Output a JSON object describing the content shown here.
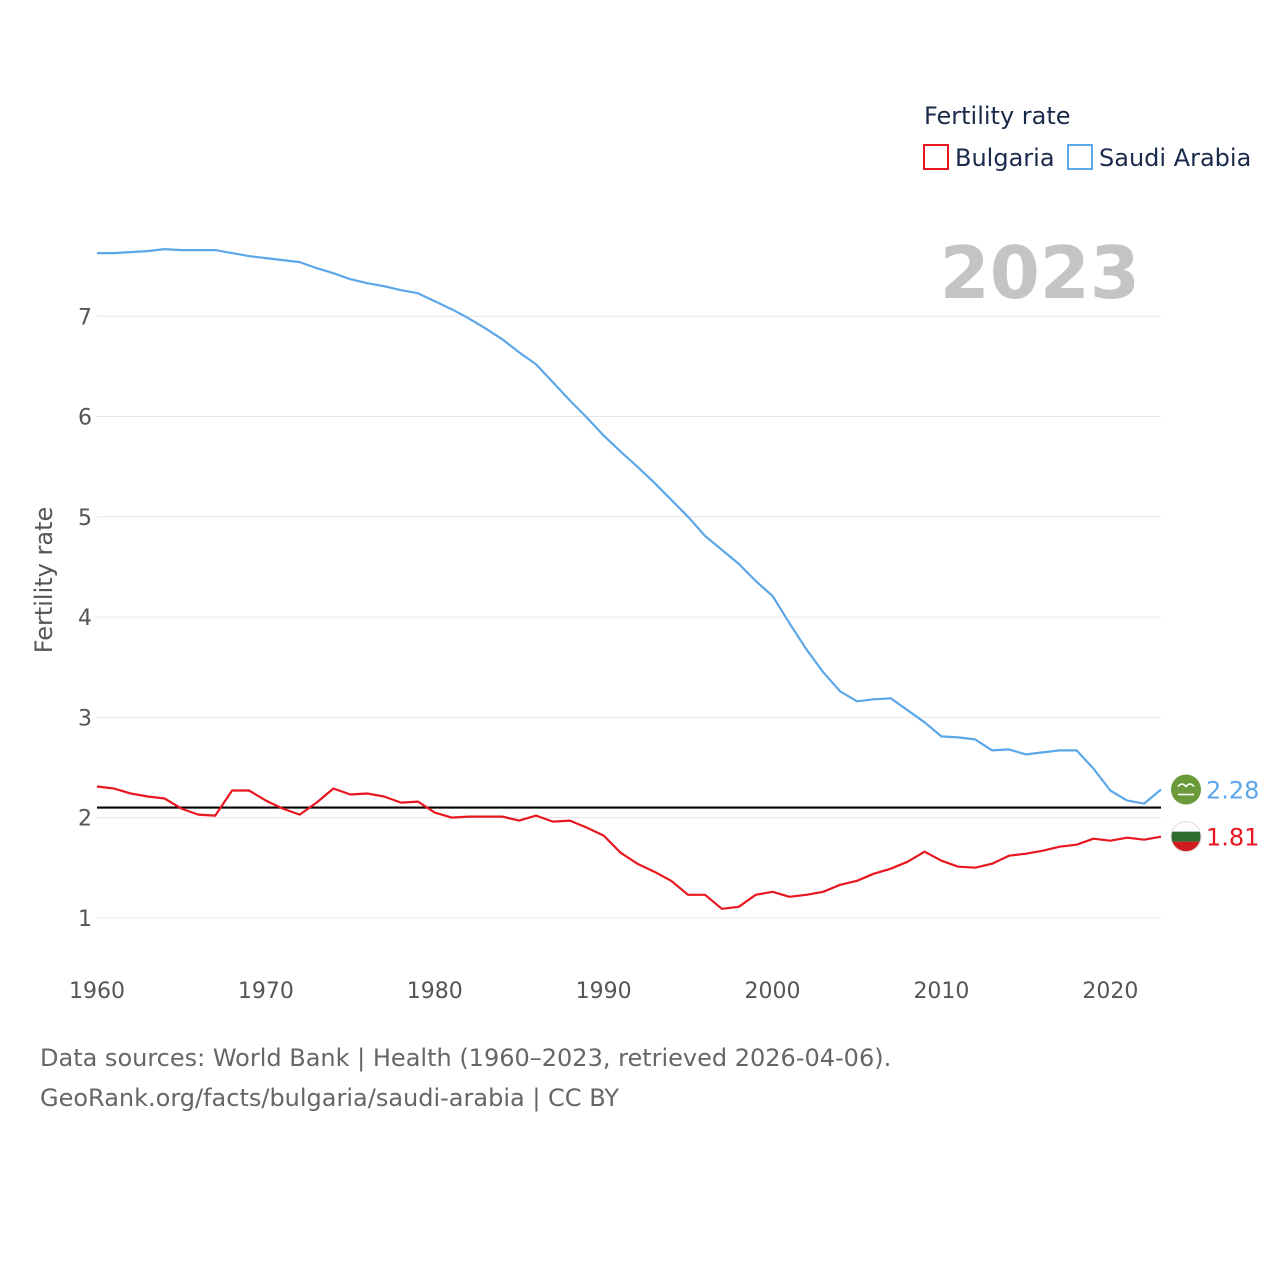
{
  "chart_data": {
    "type": "line",
    "title": "",
    "year_label": "2023",
    "ylabel": "Fertility rate",
    "xlabel": "",
    "legend_title": "Fertility rate",
    "legend_position": "top-right",
    "xlim": [
      1960,
      2023
    ],
    "ylim": [
      0.5,
      8
    ],
    "x_ticks": [
      "1960",
      "1970",
      "1980",
      "1990",
      "2000",
      "2010",
      "2020"
    ],
    "y_ticks": [
      "1",
      "2",
      "3",
      "4",
      "5",
      "6",
      "7"
    ],
    "reference_line": {
      "value": 2.1,
      "color": "#000000"
    },
    "x": [
      1960,
      1961,
      1962,
      1963,
      1964,
      1965,
      1966,
      1967,
      1968,
      1969,
      1970,
      1971,
      1972,
      1973,
      1974,
      1975,
      1976,
      1977,
      1978,
      1979,
      1980,
      1981,
      1982,
      1983,
      1984,
      1985,
      1986,
      1987,
      1988,
      1989,
      1990,
      1991,
      1992,
      1993,
      1994,
      1995,
      1996,
      1997,
      1998,
      1999,
      2000,
      2001,
      2002,
      2003,
      2004,
      2005,
      2006,
      2007,
      2008,
      2009,
      2010,
      2011,
      2012,
      2013,
      2014,
      2015,
      2016,
      2017,
      2018,
      2019,
      2020,
      2021,
      2022,
      2023
    ],
    "series": [
      {
        "name": "Bulgaria",
        "color": "#e8161f",
        "end_label": "1.81",
        "flag_icon": "bulgaria-flag-icon",
        "values": [
          2.31,
          2.29,
          2.24,
          2.21,
          2.19,
          2.09,
          2.03,
          2.02,
          2.27,
          2.27,
          2.17,
          2.09,
          2.03,
          2.15,
          2.29,
          2.23,
          2.24,
          2.21,
          2.15,
          2.16,
          2.05,
          2.0,
          2.01,
          2.01,
          2.01,
          1.97,
          2.02,
          1.96,
          1.97,
          1.9,
          1.82,
          1.65,
          1.54,
          1.46,
          1.37,
          1.23,
          1.23,
          1.09,
          1.11,
          1.23,
          1.26,
          1.21,
          1.23,
          1.26,
          1.33,
          1.37,
          1.44,
          1.49,
          1.56,
          1.66,
          1.57,
          1.51,
          1.5,
          1.54,
          1.62,
          1.64,
          1.67,
          1.71,
          1.73,
          1.79,
          1.77,
          1.8,
          1.78,
          1.81
        ]
      },
      {
        "name": "Saudi Arabia",
        "color": "#5ca7e8",
        "end_label": "2.28",
        "flag_icon": "saudi-arabia-flag-icon",
        "values": [
          7.63,
          7.63,
          7.64,
          7.65,
          7.67,
          7.66,
          7.66,
          7.66,
          7.63,
          7.6,
          7.58,
          7.56,
          7.54,
          7.48,
          7.43,
          7.37,
          7.33,
          7.3,
          7.26,
          7.23,
          7.15,
          7.07,
          6.98,
          6.88,
          6.77,
          6.64,
          6.52,
          6.34,
          6.16,
          5.99,
          5.81,
          5.65,
          5.5,
          5.34,
          5.17,
          5.0,
          4.81,
          4.67,
          4.53,
          4.36,
          4.21,
          3.94,
          3.68,
          3.45,
          3.26,
          3.16,
          3.18,
          3.19,
          3.07,
          2.95,
          2.81,
          2.8,
          2.78,
          2.67,
          2.68,
          2.63,
          2.65,
          2.67,
          2.67,
          2.49,
          2.27,
          2.17,
          2.14,
          2.28
        ]
      }
    ]
  },
  "footer": {
    "line1": "Data sources: World Bank | Health (1960–2023, retrieved 2026-04-06).",
    "line2": "GeoRank.org/facts/bulgaria/saudi-arabia | CC BY"
  }
}
